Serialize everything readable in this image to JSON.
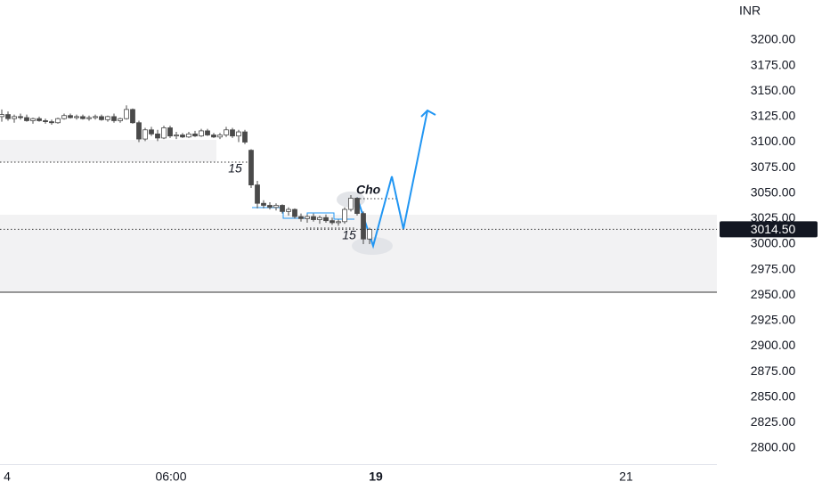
{
  "chart_data": {
    "type": "candlestick",
    "currency": "INR",
    "candles": [
      [
        3125,
        3132,
        3120,
        3127
      ],
      [
        3127,
        3130,
        3121,
        3123
      ],
      [
        3123,
        3127,
        3119,
        3125
      ],
      [
        3125,
        3128,
        3122,
        3124
      ],
      [
        3124,
        3127,
        3120,
        3121
      ],
      [
        3121,
        3124,
        3118,
        3123
      ],
      [
        3123,
        3125,
        3120,
        3121
      ],
      [
        3121,
        3123,
        3118,
        3120
      ],
      [
        3120,
        3122,
        3117,
        3119
      ],
      [
        3119,
        3124,
        3118,
        3123
      ],
      [
        3123,
        3128,
        3122,
        3126
      ],
      [
        3126,
        3128,
        3123,
        3124
      ],
      [
        3124,
        3127,
        3122,
        3125
      ],
      [
        3125,
        3127,
        3122,
        3123
      ],
      [
        3123,
        3126,
        3121,
        3124
      ],
      [
        3124,
        3127,
        3122,
        3125
      ],
      [
        3125,
        3127,
        3121,
        3122
      ],
      [
        3122,
        3126,
        3120,
        3125
      ],
      [
        3125,
        3128,
        3119,
        3121
      ],
      [
        3121,
        3124,
        3119,
        3123
      ],
      [
        3123,
        3136,
        3122,
        3132
      ],
      [
        3132,
        3133,
        3118,
        3119
      ],
      [
        3119,
        3121,
        3100,
        3103
      ],
      [
        3103,
        3114,
        3101,
        3112
      ],
      [
        3112,
        3115,
        3106,
        3108
      ],
      [
        3108,
        3112,
        3101,
        3104
      ],
      [
        3104,
        3116,
        3103,
        3114
      ],
      [
        3114,
        3116,
        3104,
        3106
      ],
      [
        3106,
        3110,
        3103,
        3107
      ],
      [
        3107,
        3109,
        3104,
        3105
      ],
      [
        3105,
        3110,
        3104,
        3108
      ],
      [
        3108,
        3111,
        3105,
        3106
      ],
      [
        3106,
        3113,
        3105,
        3111
      ],
      [
        3111,
        3113,
        3106,
        3107
      ],
      [
        3107,
        3109,
        3104,
        3105
      ],
      [
        3105,
        3109,
        3103,
        3107
      ],
      [
        3107,
        3115,
        3105,
        3112
      ],
      [
        3112,
        3114,
        3104,
        3106
      ],
      [
        3106,
        3112,
        3100,
        3110
      ],
      [
        3110,
        3112,
        3098,
        3100
      ],
      [
        3092,
        3093,
        3055,
        3058
      ],
      [
        3058,
        3062,
        3035,
        3040
      ],
      [
        3040,
        3043,
        3035,
        3038
      ],
      [
        3038,
        3041,
        3034,
        3036
      ],
      [
        3036,
        3040,
        3033,
        3038
      ],
      [
        3038,
        3039,
        3030,
        3032
      ],
      [
        3032,
        3036,
        3028,
        3034
      ],
      [
        3034,
        3035,
        3025,
        3027
      ],
      [
        3027,
        3030,
        3022,
        3025
      ],
      [
        3025,
        3029,
        3021,
        3027
      ],
      [
        3027,
        3030,
        3022,
        3024
      ],
      [
        3024,
        3028,
        3020,
        3026
      ],
      [
        3026,
        3029,
        3021,
        3023
      ],
      [
        3023,
        3026,
        3019,
        3021
      ],
      [
        3021,
        3024,
        3018,
        3022
      ],
      [
        3022,
        3036,
        3020,
        3034
      ],
      [
        3034,
        3048,
        3032,
        3045
      ],
      [
        3045,
        3046,
        3028,
        3030
      ],
      [
        3030,
        3032,
        3000,
        3005
      ],
      [
        3005,
        3016,
        3000,
        3014.5
      ]
    ],
    "x_labels": [
      "4",
      "06:00",
      "19",
      "21"
    ],
    "ylim": [
      2800,
      3200
    ],
    "yticks": [
      {
        "value": 3200,
        "label": "3200.00"
      },
      {
        "value": 3175,
        "label": "3175.00"
      },
      {
        "value": 3150,
        "label": "3150.00"
      },
      {
        "value": 3125,
        "label": "3125.00"
      },
      {
        "value": 3100,
        "label": "3100.00"
      },
      {
        "value": 3075,
        "label": "3075.00"
      },
      {
        "value": 3050,
        "label": "3050.00"
      },
      {
        "value": 3025,
        "label": "3025.00"
      },
      {
        "value": 3000,
        "label": "3000.00"
      },
      {
        "value": 2975,
        "label": "2975.00"
      },
      {
        "value": 2950,
        "label": "2950.00"
      },
      {
        "value": 2925,
        "label": "2925.00"
      },
      {
        "value": 2900,
        "label": "2900.00"
      },
      {
        "value": 2875,
        "label": "2875.00"
      },
      {
        "value": 2850,
        "label": "2850.00"
      },
      {
        "value": 2825,
        "label": "2825.00"
      },
      {
        "value": 2800,
        "label": "2800.00"
      }
    ],
    "last_price": {
      "value": 3014.5,
      "label": "3014.50"
    },
    "annotations": [
      "15",
      "15",
      "Cho"
    ]
  }
}
